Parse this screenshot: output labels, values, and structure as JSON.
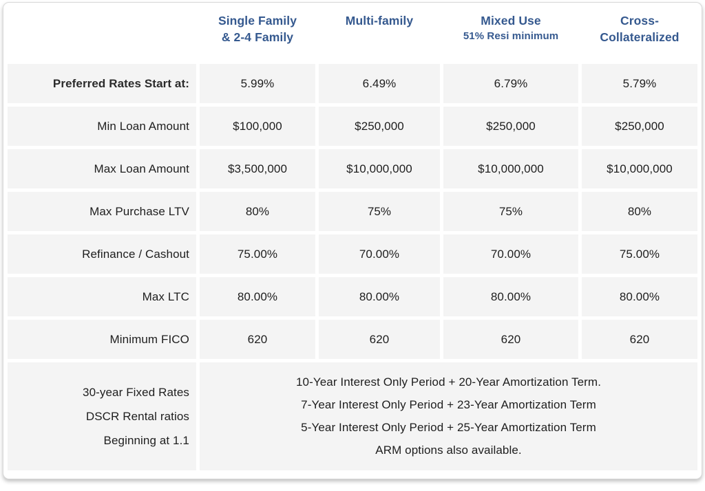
{
  "colors": {
    "header_text": "#35598f",
    "cell_background": "#f4f4f4",
    "body_text": "#1e1e1e",
    "card_border": "#d9d9d9"
  },
  "table": {
    "columns": [
      {
        "line1": "Single Family",
        "line2": "& 2-4 Family"
      },
      {
        "line1": "Multi-family",
        "line2": ""
      },
      {
        "line1": "Mixed Use",
        "line2": "51% Resi minimum"
      },
      {
        "line1": "Cross-",
        "line2": "Collateralized"
      }
    ],
    "rows": [
      {
        "label": "Preferred Rates Start at:",
        "values": [
          "5.99%",
          "6.49%",
          "6.79%",
          "5.79%"
        ]
      },
      {
        "label": "Min Loan Amount",
        "values": [
          "$100,000",
          "$250,000",
          "$250,000",
          "$250,000"
        ]
      },
      {
        "label": "Max Loan Amount",
        "values": [
          "$3,500,000",
          "$10,000,000",
          "$10,000,000",
          "$10,000,000"
        ]
      },
      {
        "label": "Max Purchase LTV",
        "values": [
          "80%",
          "75%",
          "75%",
          "80%"
        ]
      },
      {
        "label": "Refinance / Cashout",
        "values": [
          "75.00%",
          "70.00%",
          "70.00%",
          "75.00%"
        ]
      },
      {
        "label": "Max LTC",
        "values": [
          "80.00%",
          "80.00%",
          "80.00%",
          "80.00%"
        ]
      },
      {
        "label": "Minimum FICO",
        "values": [
          "620",
          "620",
          "620",
          "620"
        ]
      }
    ],
    "footer": {
      "label_lines": [
        "30-year Fixed Rates",
        "DSCR Rental ratios",
        "Beginning at 1.1"
      ],
      "content_lines": [
        "10-Year Interest Only Period + 20-Year Amortization Term.",
        "7-Year Interest Only Period + 23-Year Amortization Term",
        "5-Year Interest Only Period + 25-Year Amortization Term",
        "ARM options also available."
      ]
    }
  }
}
